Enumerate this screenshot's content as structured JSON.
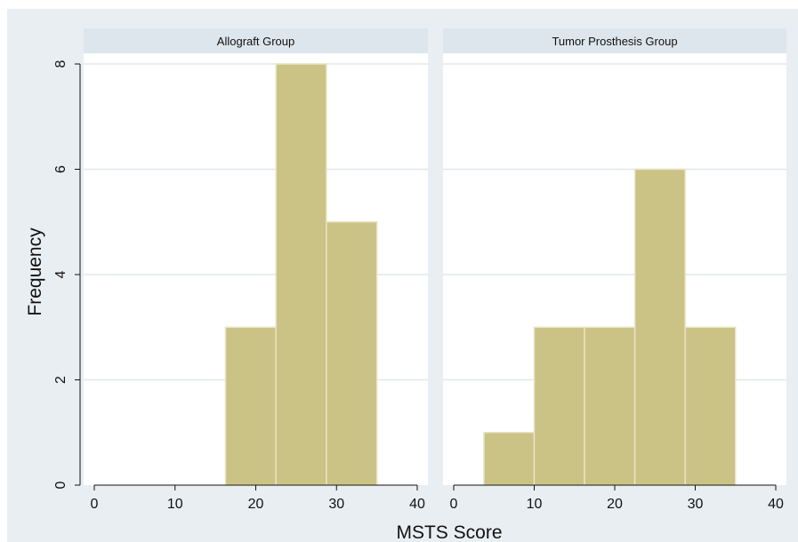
{
  "chart_data": [
    {
      "type": "bar",
      "panel_title": "Allograft Group",
      "bin_width": 6.25,
      "bins": [
        {
          "x_start": 16.25,
          "x_end": 22.5,
          "value": 3
        },
        {
          "x_start": 22.5,
          "x_end": 28.75,
          "value": 8
        },
        {
          "x_start": 28.75,
          "x_end": 35.0,
          "value": 5
        }
      ],
      "xlim": [
        0,
        40
      ],
      "ylim": [
        0,
        8
      ],
      "xticks": [
        0,
        10,
        20,
        30,
        40
      ],
      "yticks": [
        0,
        2,
        4,
        6,
        8
      ]
    },
    {
      "type": "bar",
      "panel_title": "Tumor Prosthesis Group",
      "bin_width": 6.25,
      "bins": [
        {
          "x_start": 3.75,
          "x_end": 10.0,
          "value": 1
        },
        {
          "x_start": 10.0,
          "x_end": 16.25,
          "value": 3
        },
        {
          "x_start": 16.25,
          "x_end": 22.5,
          "value": 3
        },
        {
          "x_start": 22.5,
          "x_end": 28.75,
          "value": 6
        },
        {
          "x_start": 28.75,
          "x_end": 35.0,
          "value": 3
        }
      ],
      "xlim": [
        0,
        40
      ],
      "ylim": [
        0,
        8
      ],
      "xticks": [
        0,
        10,
        20,
        30,
        40
      ],
      "yticks": [
        0,
        2,
        4,
        6,
        8
      ]
    }
  ],
  "shared": {
    "xlabel": "MSTS Score",
    "ylabel": "Frequency"
  },
  "colors": {
    "bar_fill": "#cbc286",
    "bar_stroke": "#e8e4c4",
    "strip_fill": "#dde6ec",
    "outer_background": "#e9eef2",
    "plot_background": "#ffffff",
    "gridline": "#e2e8ec",
    "axis": "#111111"
  }
}
